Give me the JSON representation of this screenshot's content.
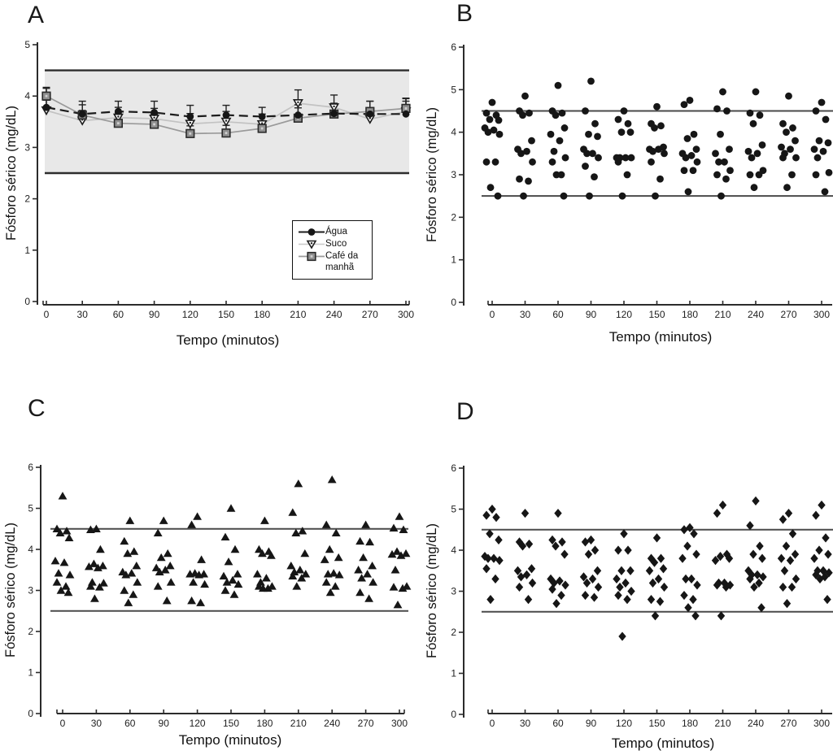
{
  "figure": {
    "panel_letters": {
      "a": "A",
      "b": "B",
      "c": "C",
      "d": "D"
    },
    "colors": {
      "marker": "#161616",
      "axis": "#2b2b2b",
      "reference_line": "#4a4a4a",
      "band_fill": "#e8e8e8",
      "band_line": "#2d2d2d"
    }
  },
  "chart_data": [
    {
      "id": "A",
      "title": "A",
      "type": "line",
      "xlabel": "Tempo (minutos)",
      "ylabel": "Fósforo sérico (mg/dL)",
      "x": [
        0,
        30,
        60,
        90,
        120,
        150,
        180,
        210,
        240,
        270,
        300
      ],
      "ylim": [
        0,
        5
      ],
      "yticks": [
        0,
        1,
        2,
        3,
        4,
        5
      ],
      "reference_band": {
        "low": 2.5,
        "high": 4.5,
        "fill": "#e8e8e8",
        "line_color": "#2d2d2d"
      },
      "legend": {
        "position": "bottom-right",
        "entries": [
          "Água",
          "Suco",
          "Café da manhã"
        ]
      },
      "series": [
        {
          "name": "Água",
          "marker": "filled-circle",
          "line_style": "dashed",
          "color": "#1c1c1c",
          "marker_fill": "#161616",
          "values": [
            3.78,
            3.65,
            3.7,
            3.68,
            3.6,
            3.63,
            3.6,
            3.63,
            3.66,
            3.65,
            3.65
          ],
          "err_up": [
            0.37,
            0.25,
            0.2,
            0.22,
            0.22,
            0.19,
            0.18,
            0.2,
            0.2,
            0.25,
            0.3
          ]
        },
        {
          "name": "Suco",
          "marker": "open-triangle-down",
          "line_style": "solid",
          "color": "#c2c2c2",
          "marker_fill": "#ffffff",
          "values": [
            3.72,
            3.52,
            3.58,
            3.56,
            3.46,
            3.5,
            3.45,
            3.86,
            3.78,
            3.55,
            3.7
          ],
          "err_up": [
            0.2,
            0.2,
            0.2,
            0.2,
            0.2,
            0.2,
            0.2,
            0.26,
            0.24,
            0.2,
            0.2
          ]
        },
        {
          "name": "Café da manhã",
          "marker": "gray-square",
          "line_style": "solid",
          "color": "#9a9a9a",
          "marker_fill": "#8f8f8f",
          "values": [
            4.0,
            3.63,
            3.47,
            3.45,
            3.27,
            3.28,
            3.37,
            3.57,
            3.65,
            3.7,
            3.76
          ],
          "err_up": [
            0.17,
            0.2,
            0.2,
            0.2,
            0.15,
            0.15,
            0.15,
            0.2,
            0.2,
            0.2,
            0.2
          ]
        }
      ]
    },
    {
      "id": "B",
      "title": "B",
      "type": "scatter",
      "marker": "filled-circle",
      "xlabel": "Tempo (minutos)",
      "ylabel": "Fósforo sérico (mg/dL)",
      "x": [
        0,
        30,
        60,
        90,
        120,
        150,
        180,
        210,
        240,
        270,
        300
      ],
      "ylim": [
        0,
        6
      ],
      "yticks": [
        0,
        1,
        2,
        3,
        4,
        5,
        6
      ],
      "reference_lines": [
        2.5,
        4.5
      ],
      "points": [
        {
          "t": 0,
          "values": [
            4.7,
            4.45,
            4.4,
            4.3,
            4.28,
            4.1,
            4.05,
            4.0,
            3.95,
            3.3,
            3.3,
            2.7,
            2.5
          ]
        },
        {
          "t": 30,
          "values": [
            4.85,
            4.5,
            4.45,
            4.4,
            3.8,
            3.6,
            3.55,
            3.5,
            3.3,
            2.9,
            2.85,
            2.5
          ]
        },
        {
          "t": 60,
          "values": [
            5.1,
            4.5,
            4.45,
            4.4,
            4.1,
            3.95,
            3.8,
            3.55,
            3.4,
            3.3,
            3.0,
            3.0,
            2.5
          ]
        },
        {
          "t": 90,
          "values": [
            5.2,
            4.5,
            4.2,
            3.95,
            3.9,
            3.6,
            3.5,
            3.5,
            3.4,
            3.2,
            2.95,
            2.5
          ]
        },
        {
          "t": 120,
          "values": [
            4.5,
            4.3,
            4.2,
            4.0,
            4.0,
            3.4,
            3.4,
            3.4,
            3.4,
            3.3,
            3.0,
            2.5
          ]
        },
        {
          "t": 150,
          "values": [
            4.6,
            4.2,
            4.15,
            4.1,
            3.65,
            3.6,
            3.6,
            3.55,
            3.5,
            3.3,
            2.9,
            2.5
          ]
        },
        {
          "t": 180,
          "values": [
            4.75,
            4.65,
            3.95,
            3.85,
            3.6,
            3.5,
            3.45,
            3.4,
            3.3,
            3.1,
            3.1,
            2.6
          ]
        },
        {
          "t": 210,
          "values": [
            4.95,
            4.55,
            4.5,
            3.95,
            3.6,
            3.5,
            3.3,
            3.3,
            3.1,
            3.0,
            2.9,
            2.5
          ]
        },
        {
          "t": 240,
          "values": [
            4.95,
            4.45,
            4.4,
            4.2,
            3.7,
            3.55,
            3.5,
            3.4,
            3.1,
            3.0,
            3.0,
            2.7
          ]
        },
        {
          "t": 270,
          "values": [
            4.85,
            4.2,
            4.1,
            4.0,
            3.8,
            3.65,
            3.6,
            3.5,
            3.4,
            3.4,
            3.0,
            2.7
          ]
        },
        {
          "t": 300,
          "values": [
            4.7,
            4.5,
            4.3,
            3.8,
            3.75,
            3.6,
            3.55,
            3.4,
            3.05,
            3.0,
            2.6
          ]
        }
      ]
    },
    {
      "id": "C",
      "title": "C",
      "type": "scatter",
      "marker": "filled-triangle-up",
      "xlabel": "Tempo (minutos)",
      "ylabel": "Fósforo sérico (mg/dL)",
      "x": [
        0,
        30,
        60,
        90,
        120,
        150,
        180,
        210,
        240,
        270,
        300
      ],
      "ylim": [
        0,
        6
      ],
      "yticks": [
        0,
        1,
        2,
        3,
        4,
        5,
        6
      ],
      "reference_lines": [
        2.5,
        4.5
      ],
      "points": [
        {
          "t": 0,
          "values": [
            5.3,
            4.5,
            4.45,
            4.4,
            4.28,
            3.72,
            3.68,
            3.42,
            3.38,
            3.2,
            3.1,
            3.0,
            2.95
          ]
        },
        {
          "t": 30,
          "values": [
            4.5,
            4.48,
            4.0,
            3.65,
            3.6,
            3.58,
            3.55,
            3.2,
            3.18,
            3.1,
            3.08,
            2.8
          ]
        },
        {
          "t": 60,
          "values": [
            4.7,
            4.2,
            3.95,
            3.9,
            3.6,
            3.45,
            3.42,
            3.38,
            3.2,
            3.0,
            2.9,
            2.7
          ]
        },
        {
          "t": 90,
          "values": [
            4.7,
            4.4,
            3.9,
            3.8,
            3.6,
            3.55,
            3.5,
            3.45,
            3.2,
            3.1,
            2.75
          ]
        },
        {
          "t": 120,
          "values": [
            4.8,
            4.6,
            3.75,
            3.42,
            3.4,
            3.4,
            3.38,
            3.2,
            3.15,
            2.75,
            2.7
          ]
        },
        {
          "t": 150,
          "values": [
            5.0,
            4.3,
            4.0,
            3.7,
            3.4,
            3.35,
            3.25,
            3.2,
            3.15,
            3.0,
            2.9
          ]
        },
        {
          "t": 180,
          "values": [
            4.7,
            4.0,
            3.95,
            3.9,
            3.85,
            3.4,
            3.3,
            3.2,
            3.1,
            3.1,
            3.05,
            3.05
          ]
        },
        {
          "t": 210,
          "values": [
            5.6,
            4.9,
            4.45,
            4.4,
            3.9,
            3.6,
            3.5,
            3.45,
            3.4,
            3.35,
            3.3,
            3.1
          ]
        },
        {
          "t": 240,
          "values": [
            5.7,
            4.6,
            4.4,
            4.0,
            3.8,
            3.75,
            3.42,
            3.4,
            3.38,
            3.2,
            3.1,
            2.95
          ]
        },
        {
          "t": 270,
          "values": [
            4.6,
            4.2,
            4.18,
            3.8,
            3.6,
            3.5,
            3.4,
            3.3,
            3.2,
            2.95,
            2.8
          ]
        },
        {
          "t": 300,
          "values": [
            4.8,
            4.52,
            4.48,
            3.95,
            3.9,
            3.88,
            3.85,
            3.5,
            3.1,
            3.08,
            3.05,
            2.65
          ]
        }
      ]
    },
    {
      "id": "D",
      "title": "D",
      "type": "scatter",
      "marker": "filled-diamond",
      "xlabel": "Tempo (minutos)",
      "ylabel": "Fósforo sérico (mg/dL)",
      "x": [
        0,
        30,
        60,
        90,
        120,
        150,
        180,
        210,
        240,
        270,
        300
      ],
      "ylim": [
        0,
        6
      ],
      "yticks": [
        0,
        1,
        2,
        3,
        4,
        5,
        6
      ],
      "reference_lines": [
        2.5,
        4.5
      ],
      "points": [
        {
          "t": 0,
          "values": [
            5.0,
            4.85,
            4.8,
            4.4,
            4.25,
            3.85,
            3.8,
            3.8,
            3.75,
            3.55,
            3.3,
            2.8
          ]
        },
        {
          "t": 30,
          "values": [
            4.9,
            4.2,
            4.15,
            4.1,
            3.55,
            3.5,
            3.4,
            3.35,
            3.2,
            3.1,
            2.8
          ]
        },
        {
          "t": 60,
          "values": [
            4.9,
            4.25,
            4.2,
            4.1,
            3.9,
            3.3,
            3.25,
            3.2,
            3.15,
            3.05,
            2.9,
            2.7
          ]
        },
        {
          "t": 90,
          "values": [
            4.25,
            4.2,
            4.0,
            3.9,
            3.5,
            3.35,
            3.3,
            3.2,
            3.1,
            2.9,
            2.85
          ]
        },
        {
          "t": 120,
          "values": [
            4.4,
            4.0,
            4.0,
            3.5,
            3.5,
            3.3,
            3.2,
            3.1,
            3.0,
            2.9,
            2.8,
            1.9
          ]
        },
        {
          "t": 150,
          "values": [
            4.3,
            3.8,
            3.8,
            3.7,
            3.55,
            3.5,
            3.3,
            3.2,
            3.1,
            2.8,
            2.75,
            2.4
          ]
        },
        {
          "t": 180,
          "values": [
            4.55,
            4.5,
            4.4,
            4.1,
            3.9,
            3.8,
            3.3,
            3.3,
            3.15,
            2.9,
            2.8,
            2.6,
            2.4
          ]
        },
        {
          "t": 210,
          "values": [
            5.1,
            4.9,
            3.9,
            3.85,
            3.8,
            3.75,
            3.2,
            3.2,
            3.15,
            3.15,
            3.1,
            2.4
          ]
        },
        {
          "t": 240,
          "values": [
            5.2,
            4.6,
            4.1,
            3.9,
            3.8,
            3.5,
            3.4,
            3.4,
            3.35,
            3.3,
            3.2,
            3.1,
            2.6
          ]
        },
        {
          "t": 270,
          "values": [
            4.9,
            4.75,
            4.4,
            4.1,
            3.9,
            3.8,
            3.75,
            3.5,
            3.3,
            3.1,
            3.1,
            2.7
          ]
        },
        {
          "t": 300,
          "values": [
            5.1,
            4.85,
            4.3,
            4.0,
            3.9,
            3.8,
            3.5,
            3.5,
            3.45,
            3.4,
            3.35,
            3.3,
            2.8
          ]
        }
      ]
    }
  ]
}
